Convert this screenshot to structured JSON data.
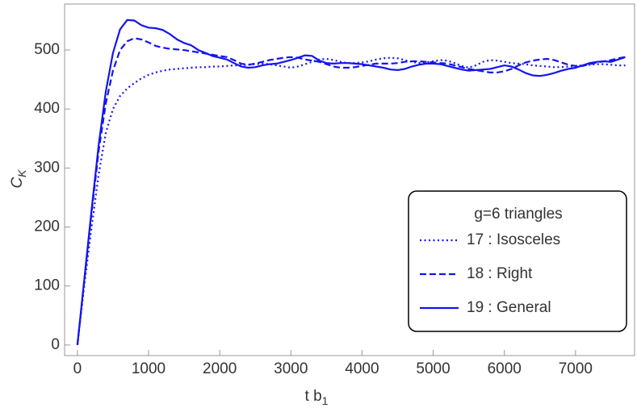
{
  "chart_data": {
    "type": "line",
    "xlabel": {
      "text": "t b",
      "subscript": "1"
    },
    "ylabel": {
      "text": "C",
      "subscript": "K"
    },
    "xlim": [
      -180,
      7830
    ],
    "ylim": [
      -18,
      578
    ],
    "xticks": [
      0,
      1000,
      2000,
      3000,
      4000,
      5000,
      6000,
      7000
    ],
    "yticks": [
      0,
      100,
      200,
      300,
      400,
      500
    ],
    "legend": {
      "title": "g=6 triangles",
      "position": "lower right"
    },
    "x": [
      0,
      100,
      200,
      300,
      400,
      500,
      600,
      700,
      800,
      900,
      1000,
      1100,
      1200,
      1300,
      1400,
      1500,
      1600,
      1700,
      1800,
      1900,
      2000,
      2100,
      2200,
      2300,
      2400,
      2500,
      2600,
      2700,
      2800,
      2900,
      3000,
      3100,
      3200,
      3300,
      3400,
      3500,
      3600,
      3700,
      3800,
      3900,
      4000,
      4100,
      4200,
      4300,
      4400,
      4500,
      4600,
      4700,
      4800,
      4900,
      5000,
      5100,
      5200,
      5300,
      5400,
      5500,
      5600,
      5700,
      5800,
      5900,
      6000,
      6100,
      6200,
      6300,
      6400,
      6500,
      6600,
      6700,
      6800,
      6900,
      7000,
      7100,
      7200,
      7300,
      7400,
      7500,
      7600,
      7700
    ],
    "series": [
      {
        "name": "17 : Isosceles",
        "color": "#1414f0",
        "style": "dotted",
        "values": [
          0,
          105,
          200,
          290,
          360,
          400,
          422,
          435,
          444,
          452,
          458,
          462,
          465,
          467,
          468,
          469,
          470,
          471,
          471,
          472,
          472,
          473,
          474,
          474,
          475,
          476,
          477,
          476,
          474,
          472,
          470,
          472,
          476,
          480,
          484,
          485,
          483,
          480,
          478,
          478,
          479,
          481,
          484,
          486,
          487,
          486,
          483,
          480,
          478,
          479,
          481,
          483,
          482,
          478,
          473,
          470,
          474,
          480,
          483,
          482,
          480,
          478,
          477,
          476,
          474,
          473,
          472,
          471,
          471,
          472,
          473,
          474,
          475,
          476,
          476,
          475,
          474,
          474
        ]
      },
      {
        "name": "18 : Right",
        "color": "#1414f0",
        "style": "dashed",
        "values": [
          0,
          112,
          225,
          330,
          410,
          465,
          500,
          515,
          520,
          518,
          513,
          507,
          504,
          502,
          501,
          500,
          498,
          496,
          494,
          492,
          490,
          488,
          483,
          477,
          475,
          477,
          480,
          483,
          485,
          487,
          488,
          487,
          484,
          482,
          480,
          476,
          472,
          470,
          470,
          471,
          473,
          475,
          477,
          477,
          477,
          478,
          480,
          481,
          481,
          480,
          479,
          478,
          477,
          474,
          471,
          468,
          466,
          464,
          462,
          462,
          464,
          468,
          474,
          479,
          482,
          484,
          485,
          483,
          479,
          475,
          473,
          473,
          476,
          479,
          481,
          483,
          486,
          488
        ]
      },
      {
        "name": "19 : General",
        "color": "#1414f0",
        "style": "solid",
        "values": [
          0,
          115,
          230,
          340,
          430,
          495,
          535,
          551,
          550,
          542,
          538,
          537,
          534,
          527,
          518,
          512,
          508,
          500,
          495,
          490,
          487,
          484,
          478,
          472,
          470,
          471,
          474,
          476,
          477,
          480,
          483,
          487,
          491,
          490,
          482,
          478,
          477,
          478,
          478,
          477,
          476,
          474,
          472,
          470,
          467,
          466,
          468,
          472,
          475,
          477,
          477,
          476,
          473,
          470,
          467,
          465,
          466,
          467,
          468,
          471,
          474,
          472,
          467,
          461,
          457,
          456,
          458,
          461,
          465,
          468,
          470,
          474,
          478,
          480,
          481,
          480,
          484,
          488
        ]
      }
    ]
  }
}
